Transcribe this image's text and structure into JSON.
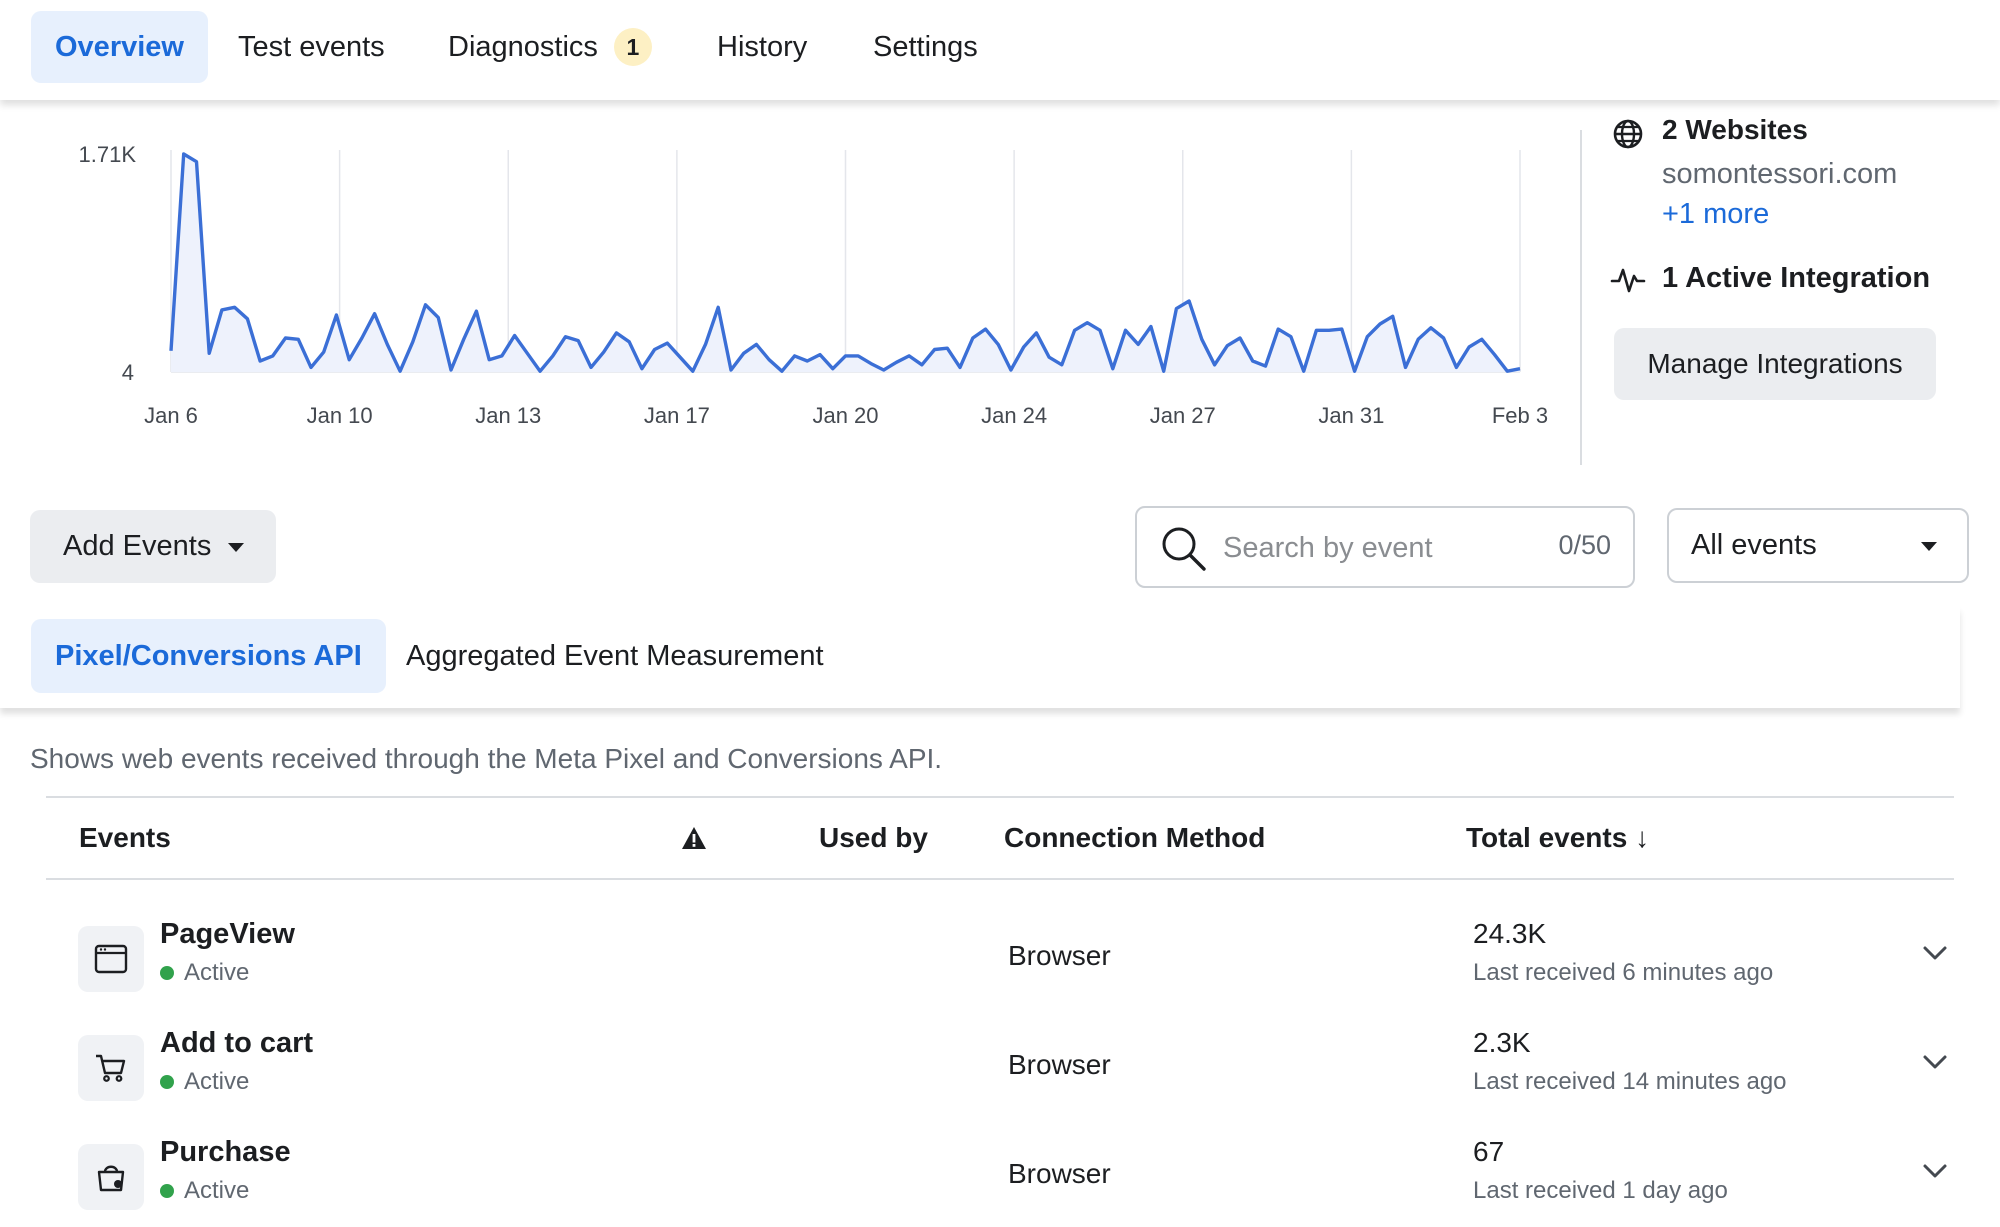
{
  "tabs": [
    {
      "label": "Overview",
      "active": true
    },
    {
      "label": "Test events",
      "active": false
    },
    {
      "label": "Diagnostics",
      "active": false,
      "badge": "1"
    },
    {
      "label": "History",
      "active": false
    },
    {
      "label": "Settings",
      "active": false
    }
  ],
  "chart_data": {
    "type": "line",
    "title": "",
    "xlabel": "",
    "ylabel": "",
    "y_tick_labels": [
      "1.71K",
      "4"
    ],
    "x_tick_labels": [
      "Jan 6",
      "Jan 10",
      "Jan 13",
      "Jan 17",
      "Jan 20",
      "Jan 24",
      "Jan 27",
      "Jan 31",
      "Feb 3"
    ],
    "ylim": [
      4,
      1710
    ],
    "grid": "vertical",
    "series": [
      {
        "color": "#3b6fd6",
        "values": [
          170,
          1710,
          1650,
          150,
          490,
          510,
          420,
          90,
          130,
          270,
          260,
          40,
          160,
          450,
          100,
          270,
          460,
          220,
          10,
          240,
          530,
          430,
          20,
          260,
          480,
          100,
          130,
          290,
          150,
          10,
          130,
          280,
          250,
          40,
          160,
          310,
          240,
          30,
          180,
          230,
          120,
          10,
          220,
          510,
          20,
          150,
          220,
          100,
          10,
          130,
          90,
          140,
          30,
          130,
          130,
          70,
          20,
          80,
          130,
          60,
          180,
          190,
          40,
          270,
          340,
          220,
          20,
          200,
          310,
          120,
          60,
          330,
          390,
          330,
          30,
          330,
          220,
          360,
          10,
          500,
          560,
          260,
          60,
          210,
          270,
          90,
          50,
          340,
          280,
          10,
          330,
          330,
          340,
          10,
          280,
          380,
          440,
          40,
          260,
          350,
          270,
          40,
          200,
          260,
          140,
          10,
          30
        ],
        "x_range": [
          "Jan 6",
          "Feb 3"
        ]
      }
    ],
    "fill_color": "#eef2fc"
  },
  "right_panel": {
    "websites_title": "2 Websites",
    "website": "somontessori.com",
    "more_link": "+1 more",
    "integration": "1 Active Integration",
    "manage_button": "Manage Integrations",
    "globe_icon": "globe-icon",
    "pulse_icon": "pulse-icon"
  },
  "controls": {
    "add_events": "Add Events",
    "search_placeholder": "Search by event",
    "search_count": "0/50",
    "filter": "All events"
  },
  "subtabs": [
    {
      "label": "Pixel/Conversions API",
      "active": true
    },
    {
      "label": "Aggregated Event Measurement",
      "active": false
    }
  ],
  "description": "Shows web events received through the Meta Pixel and Conversions API.",
  "table": {
    "headers": {
      "events": "Events",
      "used_by": "Used by",
      "connection": "Connection Method",
      "total": "Total events",
      "sort_arrow": "↓"
    },
    "rows": [
      {
        "icon": "browser-window-icon",
        "name": "PageView",
        "status": "Active",
        "method": "Browser",
        "total": "24.3K",
        "last": "Last received 6 minutes ago"
      },
      {
        "icon": "cart-icon",
        "name": "Add to cart",
        "status": "Active",
        "method": "Browser",
        "total": "2.3K",
        "last": "Last received 14 minutes ago"
      },
      {
        "icon": "shopping-bag-icon",
        "name": "Purchase",
        "status": "Active",
        "method": "Browser",
        "total": "67",
        "last": "Last received 1 day ago"
      }
    ]
  },
  "colors": {
    "accent": "#1b6ad9",
    "active_tab_bg": "#e7f0fd",
    "status_active": "#31a24c",
    "line": "#3b6fd6"
  }
}
